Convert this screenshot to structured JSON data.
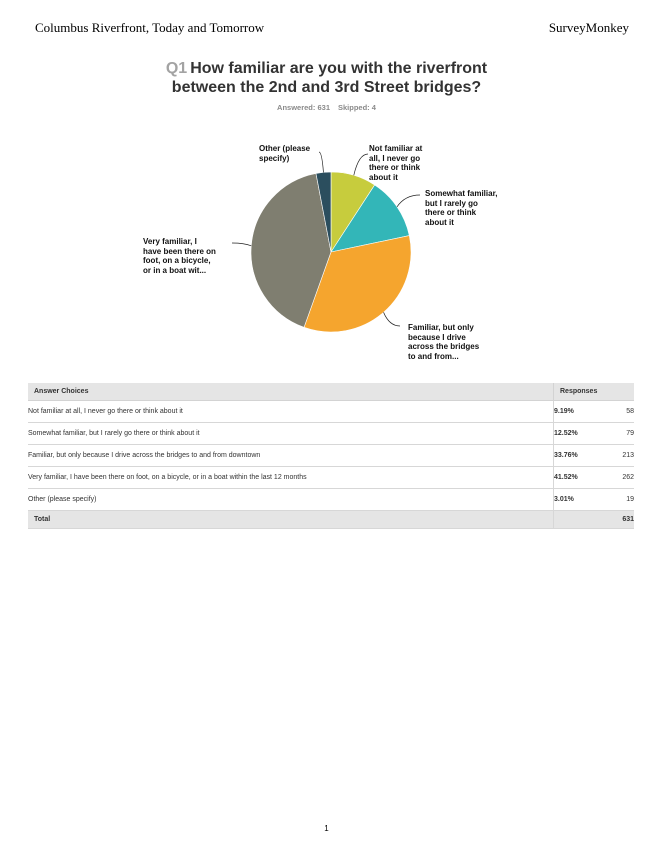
{
  "header": {
    "left": "Columbus Riverfront, Today and Tomorrow",
    "right": "SurveyMonkey"
  },
  "question": {
    "number": "Q1",
    "title_line1": "How familiar are you with the riverfront",
    "title_line2": "between the 2nd and 3rd Street bridges?",
    "answered": "Answered: 631",
    "skipped": "Skipped: 4"
  },
  "chart_data": {
    "type": "pie",
    "title": "",
    "slices": [
      {
        "label": "Not familiar at all, I never go there or think about it",
        "display_label": [
          "Not familiar at",
          "all, I never go",
          "there or think",
          "about it"
        ],
        "value": 9.19,
        "color": "#c7cc3d"
      },
      {
        "label": "Somewhat familiar, but I rarely go there or think about it",
        "display_label": [
          "Somewhat familiar,",
          "but I rarely go",
          "there or think",
          "about it"
        ],
        "value": 12.52,
        "color": "#33b6b8"
      },
      {
        "label": "Familiar, but only because I drive across the bridges to and from downtown",
        "display_label": [
          "Familiar, but only",
          "because I drive",
          "across the bridges",
          "to and from..."
        ],
        "value": 33.76,
        "color": "#f5a52e"
      },
      {
        "label": "Very familiar, I have been there on foot, on a bicycle, or in a boat within the last 12 months",
        "display_label": [
          "Very familiar, I",
          "have been there on",
          "foot, on a bicycle,",
          "or in a boat wit..."
        ],
        "value": 41.52,
        "color": "#7f7e70"
      },
      {
        "label": "Other (please specify)",
        "display_label": [
          "Other (please",
          "specify)"
        ],
        "value": 3.01,
        "color": "#2b4e5e"
      }
    ]
  },
  "table": {
    "headers": {
      "choice": "Answer Choices",
      "responses": "Responses"
    },
    "rows": [
      {
        "choice": "Not familiar at all, I never go there or think about it",
        "pct": "9.19%",
        "count": "58"
      },
      {
        "choice": "Somewhat familiar, but I rarely go there or think about it",
        "pct": "12.52%",
        "count": "79"
      },
      {
        "choice": "Familiar, but only because I drive across the bridges to and from downtown",
        "pct": "33.76%",
        "count": "213"
      },
      {
        "choice": "Very familiar, I have been there on foot, on a bicycle, or in a boat within the last 12 months",
        "pct": "41.52%",
        "count": "262"
      },
      {
        "choice": "Other (please specify)",
        "pct": "3.01%",
        "count": "19"
      }
    ],
    "total_label": "Total",
    "total_count": "631"
  },
  "page_number": "1"
}
